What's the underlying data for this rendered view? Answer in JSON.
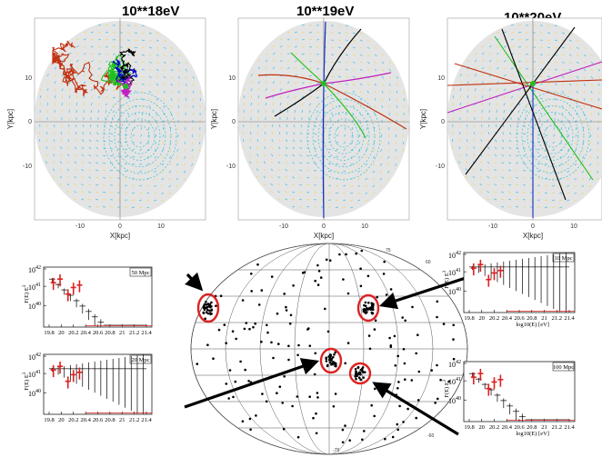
{
  "top_panels": [
    {
      "title": "10**18eV",
      "xlabel": "X[kpc]",
      "ylabel": "Y[kpc]",
      "xticks": [
        "-10",
        "0",
        "10"
      ],
      "yticks": [
        "10",
        "0",
        "-10"
      ],
      "pattern": "diffusive"
    },
    {
      "title": "10**19eV",
      "xlabel": "X[kpc]",
      "ylabel": "Y[kpc]",
      "xticks": [
        "-10",
        "0",
        "10"
      ],
      "yticks": [
        "10",
        "0",
        "-10"
      ],
      "pattern": "curved"
    },
    {
      "title": "10**20eV",
      "xlabel": "X[kpc]",
      "ylabel": "Y[kpc]",
      "xticks": [
        "-10",
        "0",
        "10"
      ],
      "yticks": [
        "10",
        "0",
        "-10"
      ],
      "pattern": "straight"
    }
  ],
  "spectra": [
    {
      "distance": "50 Mpc",
      "ylabel": "F(E) E",
      "ylabel_sup": "3",
      "yticks": [
        {
          "b": "10",
          "e": "42"
        },
        {
          "b": "10",
          "e": "41"
        },
        {
          "b": "10",
          "e": "40"
        }
      ],
      "xticks": [
        "19.8",
        "20",
        "20.2",
        "20.4",
        "20.6",
        "20.8",
        "21",
        "21.2",
        "21.4"
      ],
      "xlabel": ""
    },
    {
      "distance": "20 Mpc",
      "ylabel": "F(E) E",
      "ylabel_sup": "3",
      "yticks": [
        {
          "b": "10",
          "e": "42"
        },
        {
          "b": "10",
          "e": "41"
        },
        {
          "b": "10",
          "e": "40"
        }
      ],
      "xticks": [
        "19.8",
        "20",
        "20.2",
        "20.4",
        "20.6",
        "20.8",
        "21",
        "21.2",
        "21.4"
      ],
      "xlabel": ""
    },
    {
      "distance": "10 Mpc",
      "ylabel": "F(E) E",
      "ylabel_sup": "3",
      "yticks": [
        {
          "b": "10",
          "e": "42"
        },
        {
          "b": "10",
          "e": "41"
        },
        {
          "b": "10",
          "e": "40"
        }
      ],
      "xticks": [
        "19.8",
        "20",
        "20.2",
        "20.4",
        "20.6",
        "20.8",
        "21",
        "21.2",
        "21.4"
      ],
      "xlabel": "log10(E) [eV]"
    },
    {
      "distance": "100 Mpc",
      "ylabel": "F(E) E",
      "ylabel_sup": "3",
      "yticks": [
        {
          "b": "10",
          "e": "42"
        },
        {
          "b": "10",
          "e": "41"
        },
        {
          "b": "10",
          "e": "40"
        }
      ],
      "xticks": [
        "19.8",
        "20",
        "20.2",
        "20.4",
        "20.6",
        "20.8",
        "21",
        "21.2",
        "21.4"
      ],
      "xlabel": "log10(E) [eV]"
    }
  ],
  "skymap": {
    "lat_labels": [
      "75",
      "60",
      "-60",
      "-75"
    ],
    "colors": {
      "dots": "#000000",
      "circles": "#dd2222",
      "arrows": "#000000"
    }
  },
  "colors": {
    "field_yellow": "#e8d860",
    "field_cyan": "#40c0d8",
    "marker_red": "#e02020"
  }
}
